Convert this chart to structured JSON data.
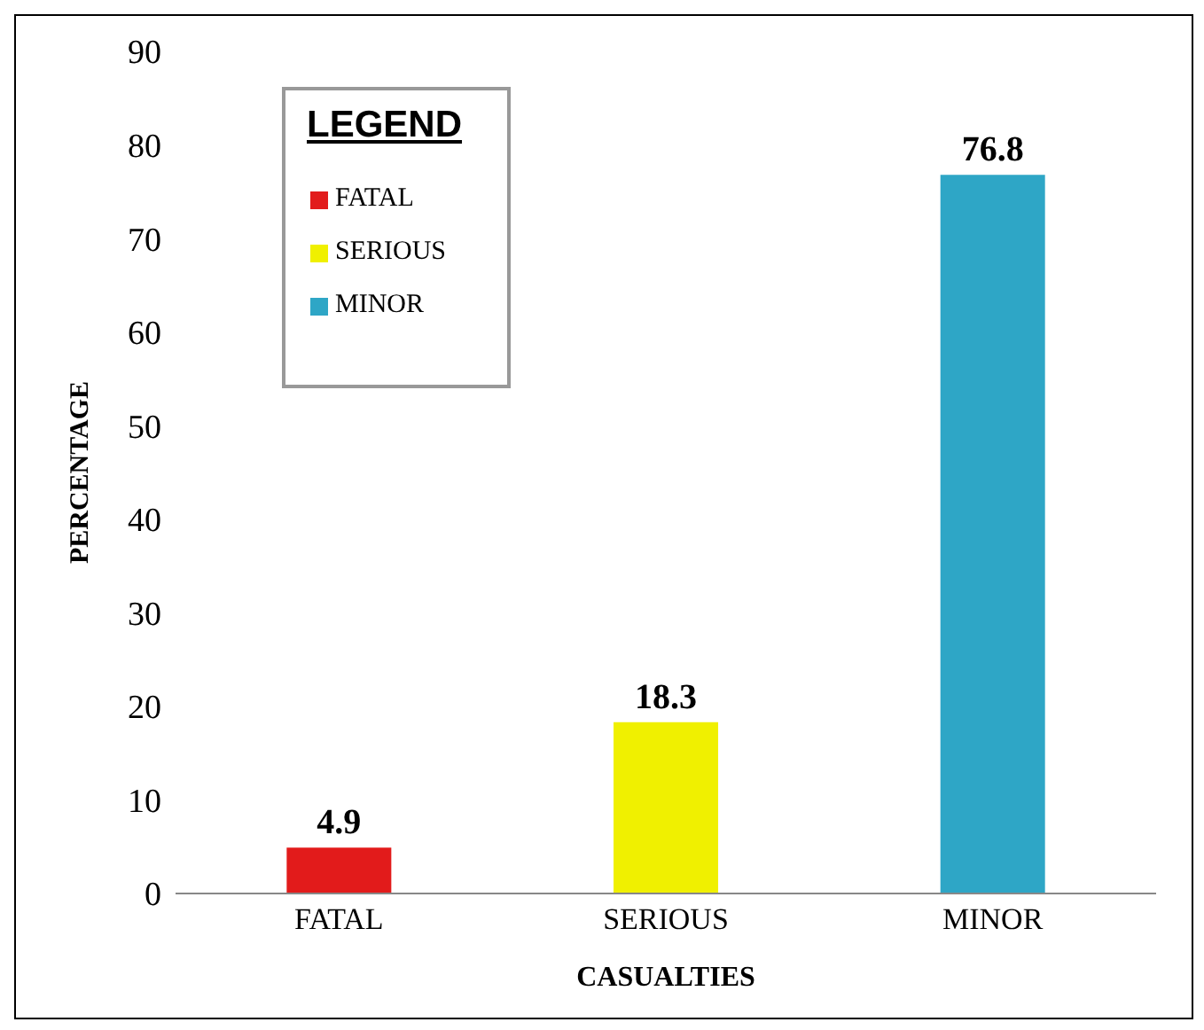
{
  "chart_data": {
    "type": "bar",
    "categories": [
      "FATAL",
      "SERIOUS",
      "MINOR"
    ],
    "series": [
      {
        "name": "FATAL",
        "color": "#e21b1b",
        "values": [
          4.9,
          null,
          null
        ]
      },
      {
        "name": "SERIOUS",
        "color": "#f0f000",
        "values": [
          null,
          18.3,
          null
        ]
      },
      {
        "name": "MINOR",
        "color": "#2ea6c6",
        "values": [
          null,
          null,
          76.8
        ]
      }
    ],
    "stacked": true,
    "xlabel": "CASUALTIES",
    "ylabel": "PERCENTAGE",
    "ylim": [
      0,
      90
    ],
    "yticks": [
      0,
      10,
      20,
      30,
      40,
      50,
      60,
      70,
      80,
      90
    ],
    "grid": false,
    "legend": "top left",
    "legend_title": "LEGEND",
    "data_labels": true
  }
}
